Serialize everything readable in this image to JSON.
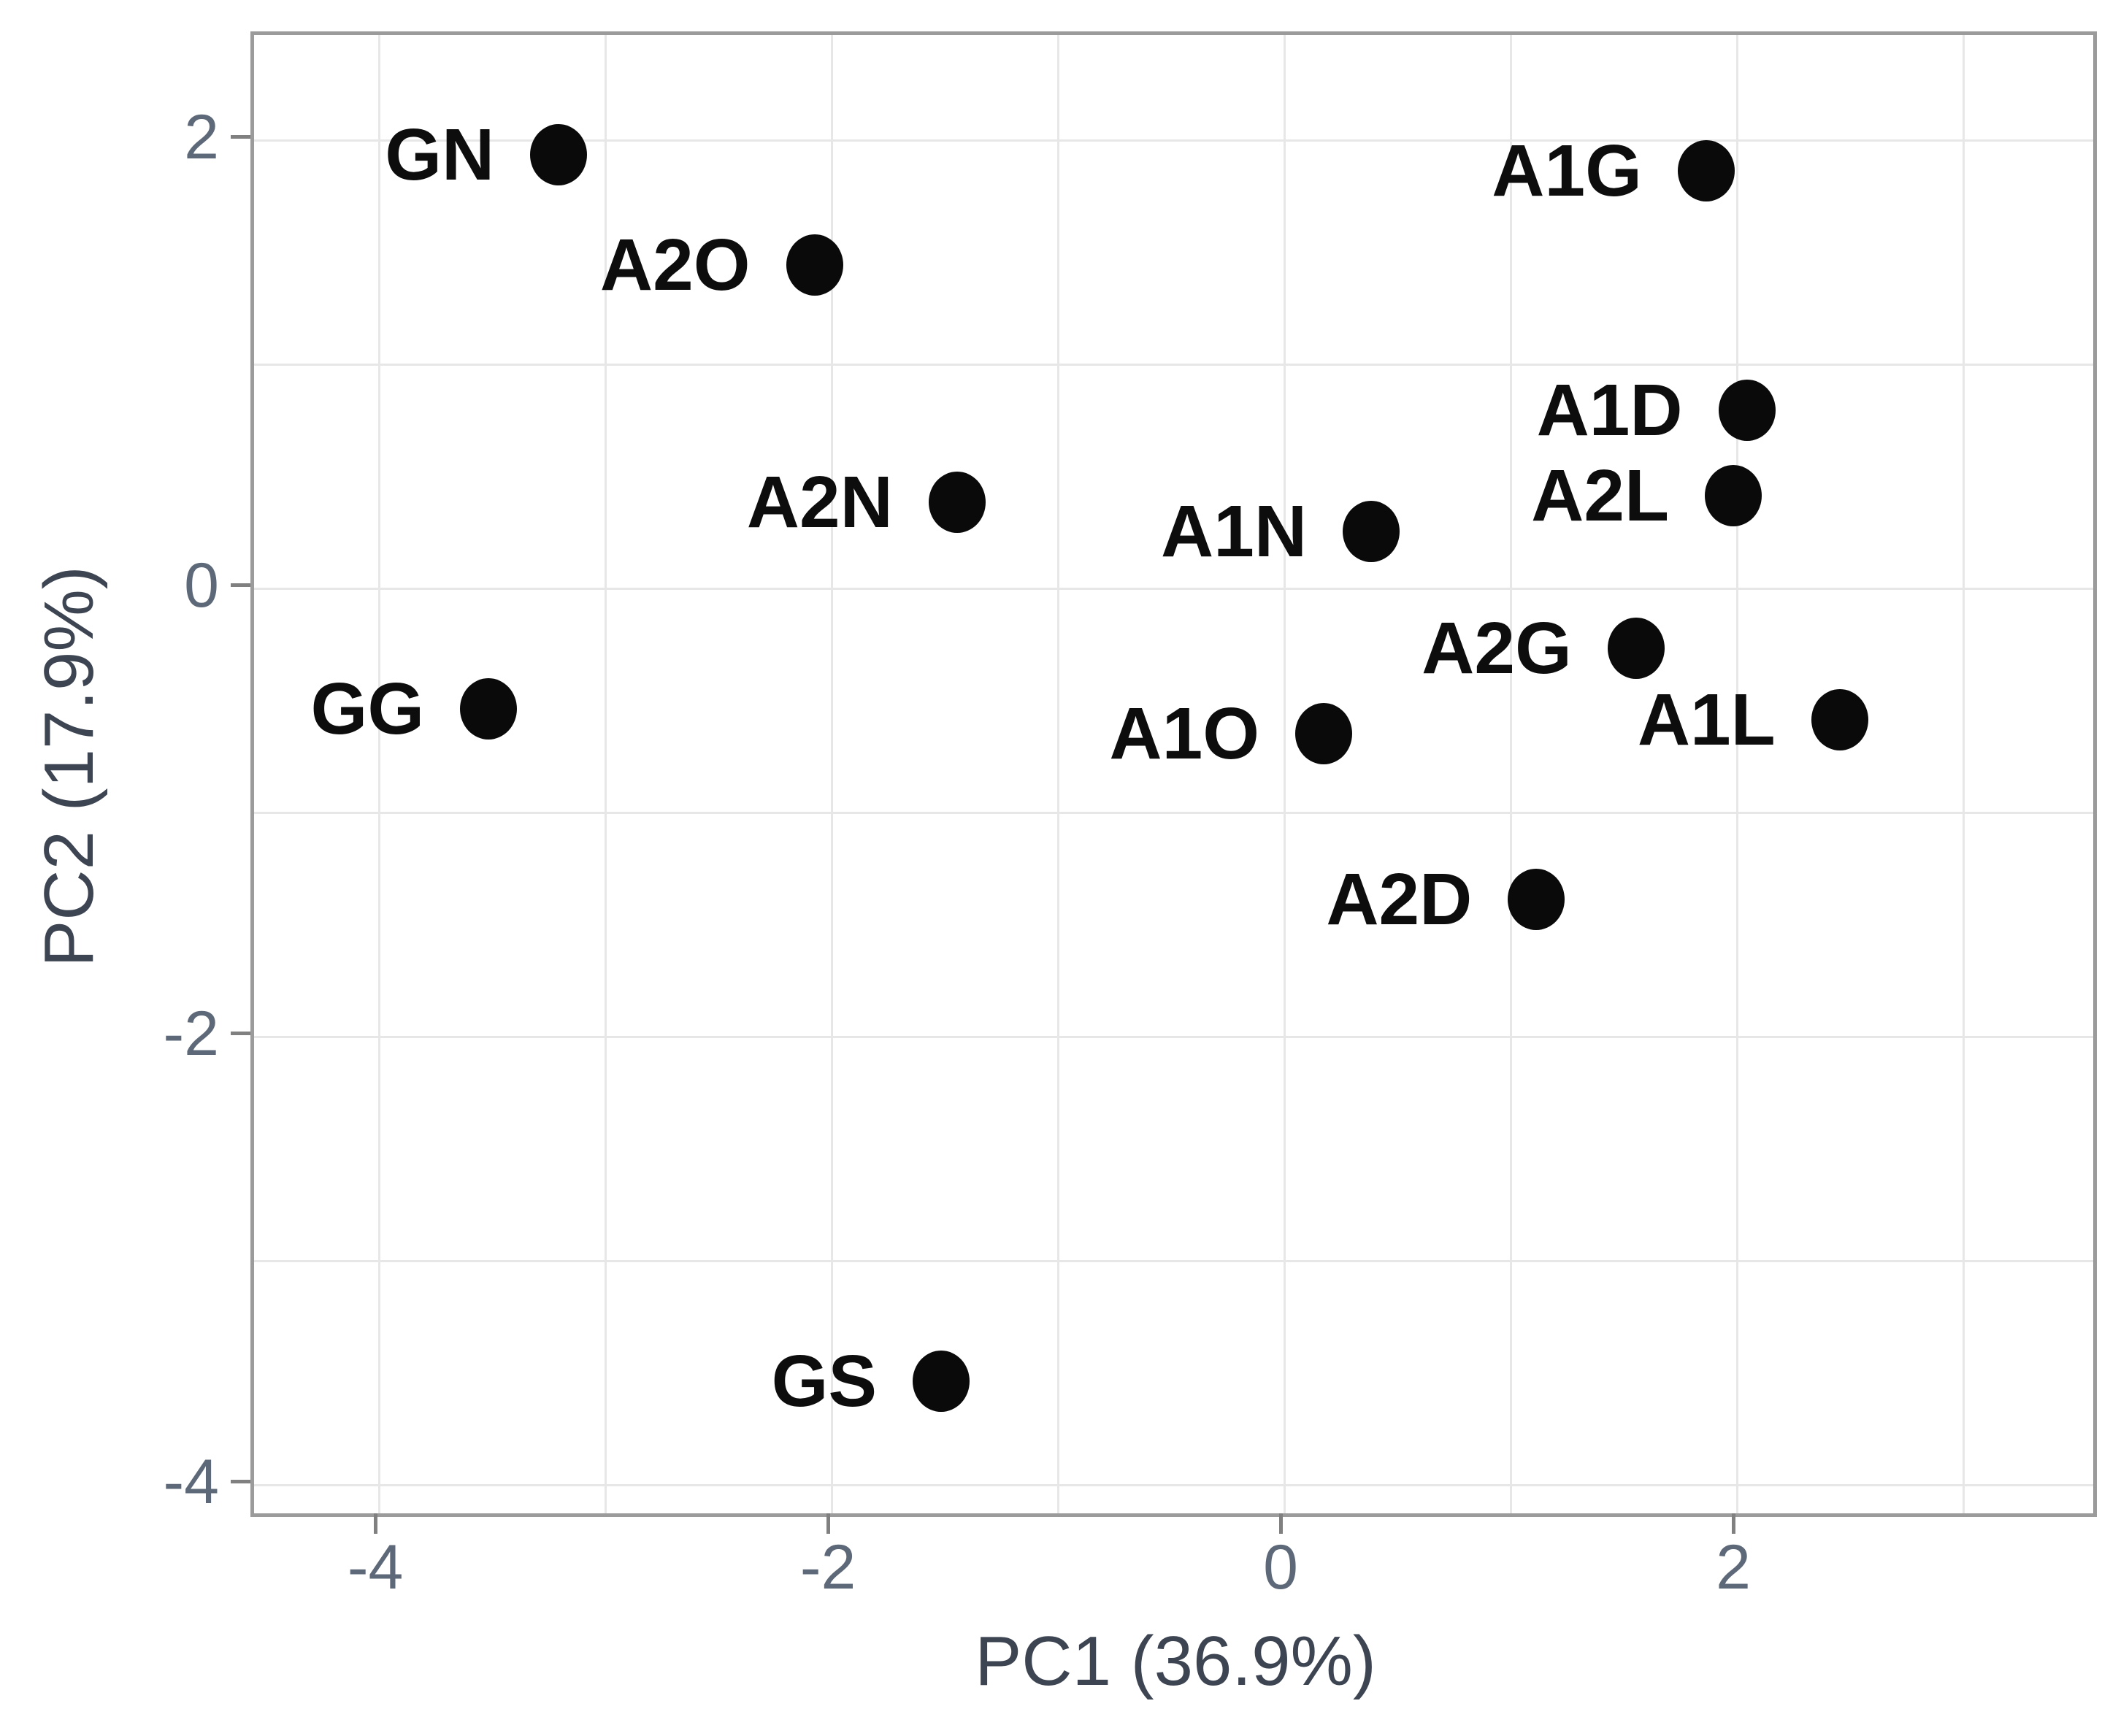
{
  "chart_data": {
    "type": "scatter",
    "title": "",
    "xlabel": "PC1 (36.9%)",
    "ylabel": "PC2 (17.9%)",
    "xlim": [
      -4.552,
      3.574
    ],
    "ylim": [
      -4.124,
      2.472
    ],
    "grid": true,
    "legend": false,
    "x_ticks": [
      {
        "value": -4,
        "label": "-4"
      },
      {
        "value": -2,
        "label": "-2"
      },
      {
        "value": 0,
        "label": "0"
      },
      {
        "value": 2,
        "label": "2"
      }
    ],
    "y_ticks": [
      {
        "value": 2,
        "label": "2"
      },
      {
        "value": 0,
        "label": "0"
      },
      {
        "value": -2,
        "label": "-2"
      },
      {
        "value": -4,
        "label": "-4"
      }
    ],
    "x_gridlines": [
      -4,
      -3,
      -2,
      -1,
      0,
      1,
      2,
      3
    ],
    "y_gridlines": [
      -4,
      -3,
      -2,
      -1,
      0,
      1,
      2
    ],
    "points": [
      {
        "label": "GN",
        "x": -3.19,
        "y": 1.92
      },
      {
        "label": "A2O",
        "x": -2.06,
        "y": 1.43
      },
      {
        "label": "A1G",
        "x": 1.88,
        "y": 1.85
      },
      {
        "label": "A1D",
        "x": 2.06,
        "y": 0.78
      },
      {
        "label": "A2L",
        "x": 2.0,
        "y": 0.4
      },
      {
        "label": "A2N",
        "x": -1.43,
        "y": 0.37
      },
      {
        "label": "A1N",
        "x": 0.4,
        "y": 0.24
      },
      {
        "label": "A2G",
        "x": 1.57,
        "y": -0.28
      },
      {
        "label": "A1L",
        "x": 2.47,
        "y": -0.6
      },
      {
        "label": "A1O",
        "x": 0.19,
        "y": -0.66
      },
      {
        "label": "GG",
        "x": -3.5,
        "y": -0.55
      },
      {
        "label": "A2D",
        "x": 1.13,
        "y": -1.4
      },
      {
        "label": "GS",
        "x": -1.5,
        "y": -3.55
      }
    ],
    "colors": {
      "point": "#0a0a0a",
      "point_label": "#0d0d0d",
      "gridline": "#e7e7e7",
      "panel_border": "#9b9b9b",
      "tick_mark": "#808080",
      "tick_label": "#5d6878",
      "axis_title": "#3d4553",
      "background": "#ffffff"
    }
  }
}
